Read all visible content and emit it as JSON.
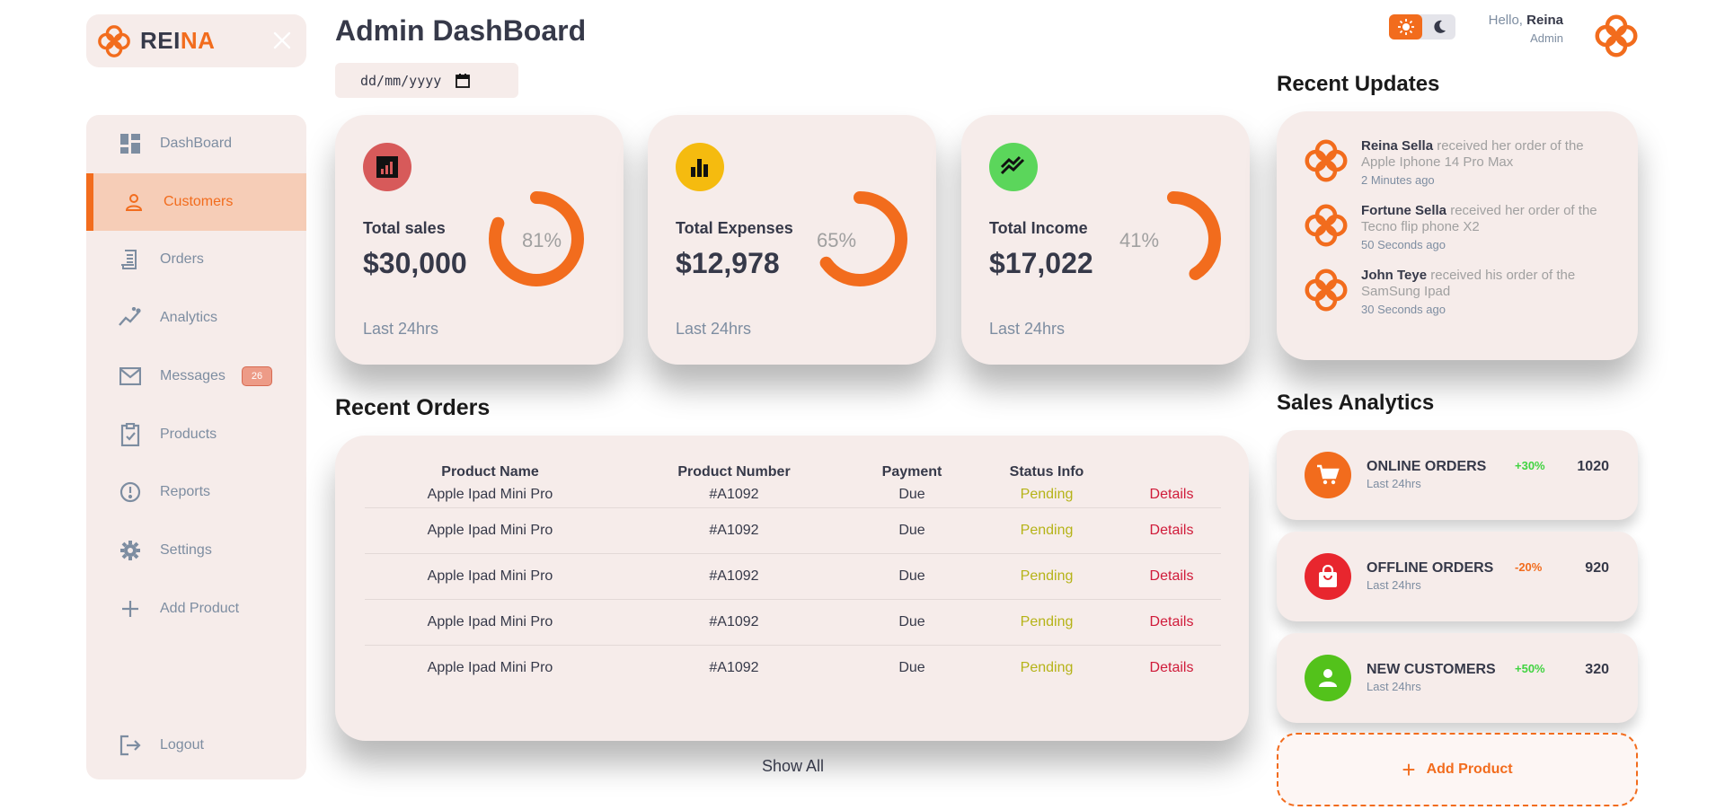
{
  "brand": {
    "name_main": "REI",
    "name_accent": "NA"
  },
  "sidebar": {
    "items": [
      {
        "label": "DashBoard",
        "icon": "grid-icon"
      },
      {
        "label": "Customers",
        "icon": "person-icon"
      },
      {
        "label": "Orders",
        "icon": "receipt-icon"
      },
      {
        "label": "Analytics",
        "icon": "insights-icon"
      },
      {
        "label": "Messages",
        "icon": "mail-icon",
        "badge": "26"
      },
      {
        "label": "Products",
        "icon": "clipboard-check-icon"
      },
      {
        "label": "Reports",
        "icon": "alert-circle-icon"
      },
      {
        "label": "Settings",
        "icon": "gear-icon"
      },
      {
        "label": "Add Product",
        "icon": "plus-icon"
      }
    ],
    "logout": "Logout"
  },
  "header": {
    "title": "Admin DashBoard",
    "date_placeholder": "dd/mm/yyyy"
  },
  "cards": [
    {
      "label": "Total sales",
      "value": "$30,000",
      "percent": 81,
      "percent_text": "81%",
      "footer": "Last 24hrs",
      "icon_color": "#d75a5a",
      "icon": "bar-chart-icon"
    },
    {
      "label": "Total Expenses",
      "value": "$12,978",
      "percent": 65,
      "percent_text": "65%",
      "footer": "Last 24hrs",
      "icon_color": "#f5bb0f",
      "icon": "bar-chart-icon"
    },
    {
      "label": "Total Income",
      "value": "$17,022",
      "percent": 41,
      "percent_text": "41%",
      "footer": "Last 24hrs",
      "icon_color": "#5bd65b",
      "icon": "trending-up-icon"
    }
  ],
  "orders": {
    "title": "Recent Orders",
    "headers": [
      "Product Name",
      "Product Number",
      "Payment",
      "Status Info",
      ""
    ],
    "rows": [
      {
        "name": "Apple Ipad Mini Pro",
        "number": "#A1092",
        "payment": "Due",
        "status": "Pending",
        "action": "Details"
      },
      {
        "name": "Apple Ipad Mini Pro",
        "number": "#A1092",
        "payment": "Due",
        "status": "Pending",
        "action": "Details"
      },
      {
        "name": "Apple Ipad Mini Pro",
        "number": "#A1092",
        "payment": "Due",
        "status": "Pending",
        "action": "Details"
      },
      {
        "name": "Apple Ipad Mini Pro",
        "number": "#A1092",
        "payment": "Due",
        "status": "Pending",
        "action": "Details"
      },
      {
        "name": "Apple Ipad Mini Pro",
        "number": "#A1092",
        "payment": "Due",
        "status": "Pending",
        "action": "Details"
      }
    ],
    "show_all": "Show All"
  },
  "topbar": {
    "hello": "Hello, ",
    "user": "Reina",
    "role": "Admin"
  },
  "updates": {
    "title": "Recent Updates",
    "items": [
      {
        "name": "Reina Sella",
        "text": " received her order of the Apple Iphone 14 Pro Max",
        "time": "2 Minutes ago"
      },
      {
        "name": "Fortune Sella",
        "text": " received her order of the Tecno flip phone X2",
        "time": "50 Seconds ago"
      },
      {
        "name": "John Teye",
        "text": " received his order of the SamSung Ipad",
        "time": "30 Seconds ago"
      }
    ]
  },
  "analytics": {
    "title": "Sales Analytics",
    "items": [
      {
        "label": "ONLINE ORDERS",
        "sub": "Last 24hrs",
        "pct": "+30%",
        "pct_color": "#41d341",
        "num": "1020",
        "icon_color": "#f26c1d",
        "icon": "cart-icon"
      },
      {
        "label": "OFFLINE ORDERS",
        "sub": "Last 24hrs",
        "pct": "-20%",
        "pct_color": "#f26c1d",
        "num": "920",
        "icon_color": "#e8262e",
        "icon": "shopping-bag-icon"
      },
      {
        "label": "NEW CUSTOMERS",
        "sub": "Last 24hrs",
        "pct": "+50%",
        "pct_color": "#41d341",
        "num": "320",
        "icon_color": "#53c21b",
        "icon": "person-icon"
      }
    ],
    "add_product": "Add Product"
  },
  "colors": {
    "accent": "#f26c1d",
    "card_bg": "#f6ecea"
  }
}
